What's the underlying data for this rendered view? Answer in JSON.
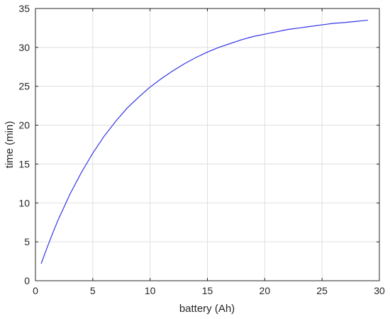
{
  "chart_data": {
    "type": "line",
    "title": "",
    "xlabel": "battery (Ah)",
    "ylabel": "time (min)",
    "xlim": [
      0,
      30
    ],
    "ylim": [
      0,
      35
    ],
    "xticks": [
      0,
      5,
      10,
      15,
      20,
      25,
      30
    ],
    "yticks": [
      0,
      5,
      10,
      15,
      20,
      25,
      30,
      35
    ],
    "grid": true,
    "legend": "none",
    "series": [
      {
        "color": "#3333e6",
        "x": [
          0.5,
          1,
          1.5,
          2,
          3,
          4,
          5,
          6,
          7,
          8,
          9,
          10,
          11,
          12,
          13,
          14,
          15,
          16,
          17,
          18,
          19,
          20,
          21,
          22,
          23,
          24,
          25,
          26,
          27,
          28,
          29
        ],
        "y": [
          2.2,
          4.2,
          6.1,
          7.9,
          11.1,
          13.9,
          16.4,
          18.6,
          20.5,
          22.2,
          23.6,
          24.9,
          26.0,
          27.0,
          27.9,
          28.7,
          29.4,
          30.0,
          30.5,
          31.0,
          31.4,
          31.7,
          32.0,
          32.3,
          32.5,
          32.7,
          32.9,
          33.1,
          33.2,
          33.35,
          33.5
        ]
      }
    ]
  }
}
